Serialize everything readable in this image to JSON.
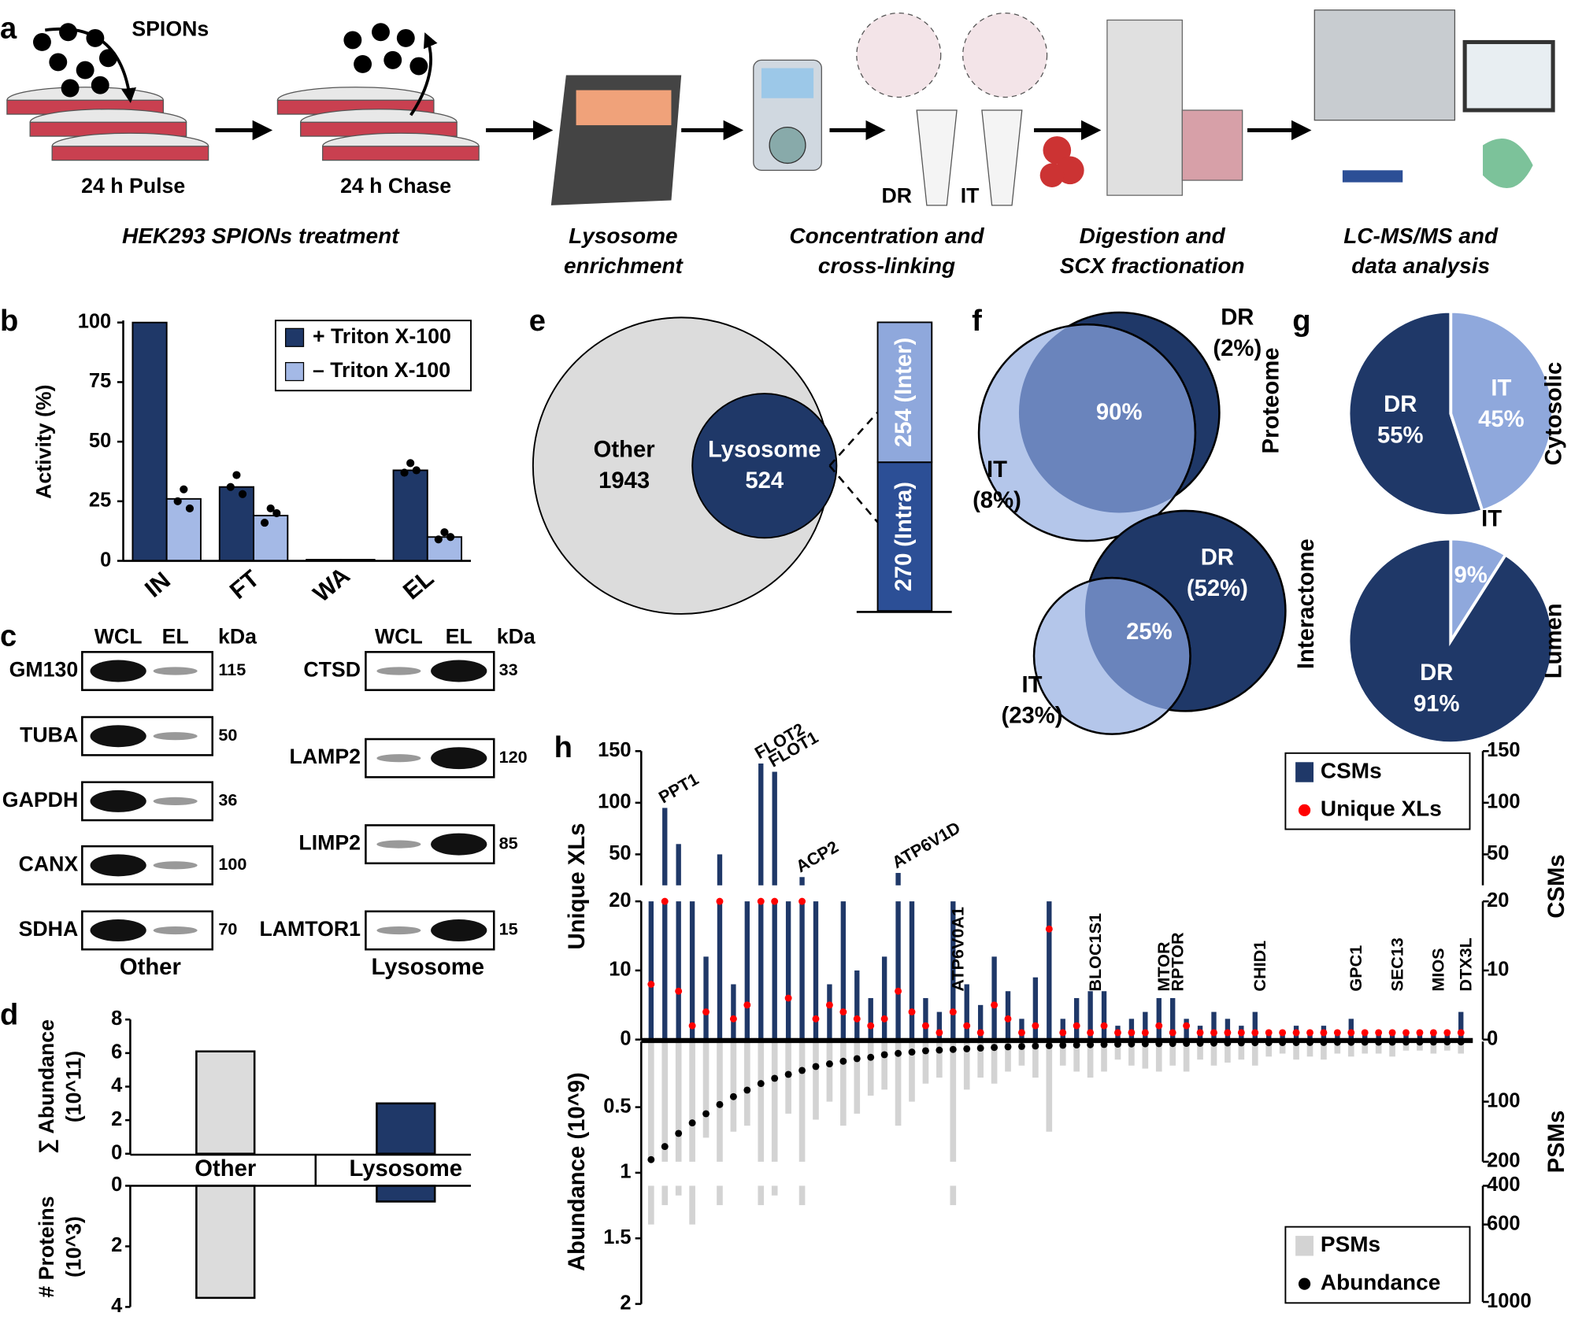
{
  "panel_labels": [
    "a",
    "b",
    "c",
    "d",
    "e",
    "f",
    "g",
    "h"
  ],
  "workflow": {
    "reagent": "SPIONs",
    "pulse": "24 h Pulse",
    "chase": "24 h Chase",
    "samples": [
      "DR",
      "IT"
    ],
    "steps": [
      [
        "HEK293 SPIONs treatment"
      ],
      [
        "Lysosome",
        "enrichment"
      ],
      [
        "Concentration and",
        "cross-linking"
      ],
      [
        "Digestion and",
        "SCX fractionation"
      ],
      [
        "LC-MS/MS and",
        "data analysis"
      ]
    ]
  },
  "blots": {
    "columns": [
      "WCL",
      "EL",
      "kDa"
    ],
    "groups": [
      {
        "name": "Other",
        "rows": [
          {
            "protein": "GM130",
            "kda": 115
          },
          {
            "protein": "TUBA",
            "kda": 50
          },
          {
            "protein": "GAPDH",
            "kda": 36
          },
          {
            "protein": "CANX",
            "kda": 100
          },
          {
            "protein": "SDHA",
            "kda": 70
          }
        ]
      },
      {
        "name": "Lysosome",
        "rows": [
          {
            "protein": "CTSD",
            "kda": 33
          },
          {
            "protein": "LAMP2",
            "kda": 120
          },
          {
            "protein": "LIMP2",
            "kda": 85
          },
          {
            "protein": "LAMTOR1",
            "kda": 15
          }
        ]
      }
    ]
  },
  "panel_e": {
    "sets": [
      {
        "name": "Other",
        "value": 1943,
        "color": "#dcdcdc"
      },
      {
        "name": "Lysosome",
        "value": 524,
        "color": "#1f3868"
      }
    ],
    "bar": [
      {
        "value": 270,
        "label": "(Intra)",
        "color": "#2c4f96"
      },
      {
        "value": 254,
        "label": "(Inter)",
        "color": "#8fa8dc"
      }
    ]
  },
  "chart_data": [
    {
      "type": "bar",
      "categories": [
        "IN",
        "FT",
        "WA",
        "EL"
      ],
      "series": [
        {
          "name": "+ Triton X-100",
          "color": "#1f3868",
          "values": [
            100,
            31,
            0.5,
            38
          ],
          "replicates": [
            [],
            [
              31,
              36,
              28
            ],
            [],
            [
              37,
              41,
              38
            ]
          ]
        },
        {
          "name": "– Triton X-100",
          "color": "#a4b9e6",
          "values": [
            26,
            19,
            0.5,
            10
          ],
          "replicates": [
            [
              25,
              30,
              22
            ],
            [
              16,
              22,
              20
            ],
            [],
            [
              9,
              12,
              10
            ]
          ]
        }
      ],
      "ylabel": "Activity (%)",
      "ylim": [
        0,
        100
      ],
      "yticks": [
        0,
        25,
        50,
        75,
        100
      ],
      "legend": "upper right"
    },
    {
      "type": "bar",
      "categories": [
        "Other",
        "Lysosome"
      ],
      "values": [
        6.1,
        3.0
      ],
      "colors": [
        "#dcdcdc",
        "#1f3868"
      ],
      "ylabel": [
        "∑ Abundance",
        "(10^11)"
      ],
      "ylim": [
        0,
        8
      ],
      "yticks": [
        0,
        2,
        4,
        6,
        8
      ]
    },
    {
      "type": "bar",
      "values": [
        3.7,
        0.52
      ],
      "colors": [
        "#dcdcdc",
        "#1f3868"
      ],
      "ylabel": [
        "# Proteins",
        "(10^3)"
      ],
      "ylim": [
        0,
        4
      ],
      "yticks": [
        0,
        2,
        4
      ],
      "inverted": true
    },
    {
      "type": "venn",
      "title": "Proteome",
      "sets": [
        {
          "name": "DR",
          "value": 2,
          "value_label": "(2%)",
          "color": "#1f3868"
        },
        {
          "name": "IT",
          "value": 8,
          "value_label": "(8%)",
          "color": "#b4c6ea"
        }
      ],
      "overlap": {
        "value": 90,
        "value_label": "90%",
        "color": "#6a84bc"
      }
    },
    {
      "type": "venn",
      "title": "Interactome",
      "sets": [
        {
          "name": "DR",
          "value": 52,
          "value_label": "(52%)",
          "color": "#1f3868"
        },
        {
          "name": "IT",
          "value": 23,
          "value_label": "(23%)",
          "color": "#b4c6ea"
        }
      ],
      "overlap": {
        "value": 25,
        "value_label": "25%",
        "color": "#6a84bc"
      }
    },
    {
      "type": "pie",
      "title": "Cytosolic",
      "categories": [
        "DR",
        "IT"
      ],
      "values": [
        55,
        45
      ],
      "value_labels": [
        "55%",
        "45%"
      ],
      "colors": [
        "#1f3868",
        "#8fa8dc"
      ]
    },
    {
      "type": "pie",
      "title": "Lumen",
      "categories": [
        "DR",
        "IT"
      ],
      "values": [
        91,
        9
      ],
      "value_labels": [
        "91%",
        "9%"
      ],
      "colors": [
        "#1f3868",
        "#8fa8dc"
      ]
    },
    {
      "type": "combo",
      "categories": [
        null,
        "PPT1",
        null,
        null,
        null,
        null,
        null,
        null,
        "FLOT2",
        "FLOT1",
        null,
        "ACP2",
        null,
        null,
        null,
        null,
        null,
        null,
        "ATP6V1D",
        null,
        null,
        null,
        "ATP6V0A1",
        null,
        null,
        null,
        null,
        null,
        null,
        null,
        null,
        null,
        "BLOC1S1",
        null,
        null,
        null,
        null,
        "MTOR",
        "RPTOR",
        null,
        null,
        null,
        null,
        null,
        "CHID1",
        null,
        null,
        null,
        null,
        null,
        null,
        "GPC1",
        null,
        null,
        "SEC13",
        null,
        null,
        "MIOS",
        null,
        "DTX3L"
      ],
      "series": [
        {
          "name": "CSMs",
          "color": "#1f3868",
          "axis": "y2",
          "values": [
            20,
            95,
            60,
            20,
            12,
            50,
            8,
            20,
            138,
            130,
            20,
            28,
            20,
            8,
            20,
            10,
            6,
            12,
            32,
            20,
            6,
            4,
            20,
            8,
            5,
            12,
            7,
            3,
            9,
            20,
            3,
            6,
            7,
            7,
            2,
            3,
            4,
            6,
            6,
            3,
            2,
            4,
            3,
            2,
            4,
            1,
            1,
            2,
            1,
            2,
            1,
            3,
            1,
            1,
            1,
            1,
            1,
            1,
            1,
            4
          ]
        },
        {
          "name": "Unique XLs",
          "color": "#ff0000",
          "values": [
            8,
            20,
            7,
            2,
            4,
            20,
            3,
            5,
            20,
            20,
            6,
            20,
            3,
            5,
            4,
            3,
            2,
            3,
            7,
            4,
            2,
            1,
            4,
            2,
            1,
            5,
            3,
            1,
            2,
            16,
            1,
            2,
            1,
            2,
            1,
            1,
            1,
            2,
            1,
            2,
            1,
            1,
            1,
            1,
            1,
            1,
            1,
            1,
            1,
            1,
            1,
            1,
            1,
            1,
            1,
            1,
            1,
            1,
            1,
            1
          ]
        },
        {
          "name": "PSMs",
          "color": "#d3d3d3",
          "axis": "y4",
          "values": [
            600,
            500,
            450,
            600,
            160,
            500,
            150,
            140,
            500,
            450,
            120,
            500,
            130,
            100,
            140,
            120,
            90,
            80,
            140,
            100,
            70,
            60,
            500,
            80,
            60,
            70,
            50,
            40,
            60,
            150,
            40,
            50,
            60,
            50,
            30,
            40,
            45,
            50,
            40,
            50,
            30,
            40,
            35,
            30,
            40,
            25,
            20,
            30,
            25,
            30,
            20,
            25,
            20,
            20,
            25,
            15,
            15,
            20,
            15,
            20
          ]
        },
        {
          "name": "Abundance",
          "color": "#000000",
          "axis": "y3",
          "values": [
            0.9,
            0.8,
            0.7,
            0.62,
            0.55,
            0.48,
            0.42,
            0.37,
            0.32,
            0.28,
            0.25,
            0.22,
            0.19,
            0.17,
            0.15,
            0.13,
            0.12,
            0.1,
            0.09,
            0.08,
            0.07,
            0.065,
            0.06,
            0.055,
            0.05,
            0.045,
            0.04,
            0.037,
            0.034,
            0.031,
            0.028,
            0.026,
            0.024,
            0.022,
            0.02,
            0.018,
            0.017,
            0.016,
            0.015,
            0.014,
            0.013,
            0.012,
            0.011,
            0.01,
            0.009,
            0.009,
            0.008,
            0.008,
            0.007,
            0.007,
            0.006,
            0.006,
            0.005,
            0.005,
            0.005,
            0.004,
            0.004,
            0.004,
            0.003,
            0.003
          ]
        }
      ],
      "ylabel": "Unique XLs",
      "ylim": [
        0,
        150
      ],
      "yticks": [
        0,
        10,
        20,
        50,
        100,
        150
      ],
      "ybreak": 20,
      "y2label": "CSMs",
      "y2lim": [
        0,
        150
      ],
      "y2ticks": [
        0,
        10,
        20,
        50,
        100,
        150
      ],
      "y3label": "Abundance (10^9)",
      "y3lim": [
        0,
        2
      ],
      "y3ticks": [
        0.5,
        1,
        1.5,
        2
      ],
      "y4label": "PSMs",
      "y4lim": [
        0,
        1000
      ],
      "y4ticks": [
        100,
        200,
        400,
        600,
        1000
      ],
      "y4break": [
        200,
        400
      ]
    }
  ]
}
